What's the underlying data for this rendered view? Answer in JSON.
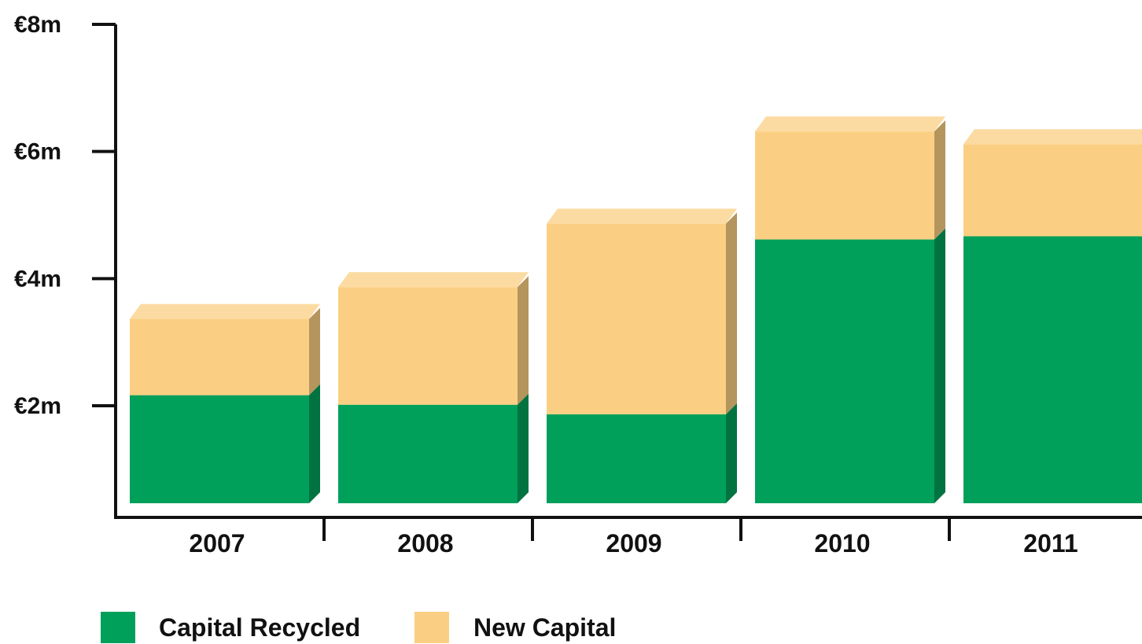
{
  "chart_data": {
    "type": "bar",
    "stacked": true,
    "style": "3d",
    "categories": [
      "2007",
      "2008",
      "2009",
      "2010",
      "2011"
    ],
    "series": [
      {
        "name": "Capital Recycled",
        "values": [
          1.7,
          1.55,
          1.4,
          4.15,
          4.2
        ],
        "color": "#00a05a"
      },
      {
        "name": "New Capital",
        "values": [
          1.2,
          1.85,
          3.0,
          1.7,
          1.45
        ],
        "color": "#fbcf83"
      }
    ],
    "y_ticks": [
      {
        "value": 8,
        "label": "€8m"
      },
      {
        "value": 6,
        "label": "€6m"
      },
      {
        "value": 4,
        "label": "€4m"
      },
      {
        "value": 2,
        "label": "€2m"
      }
    ],
    "ylim": [
      0,
      8
    ],
    "grid": false,
    "legend_position": "bottom-left"
  }
}
